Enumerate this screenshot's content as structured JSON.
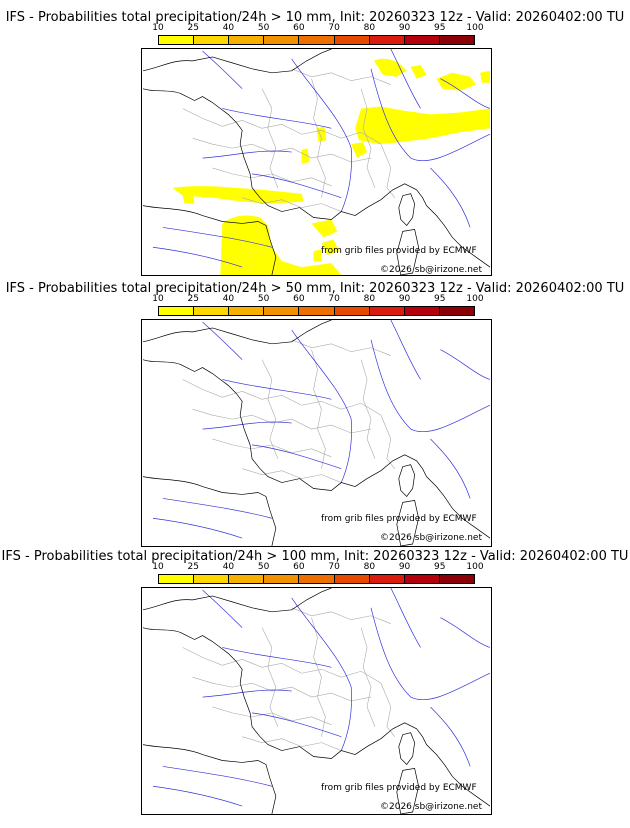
{
  "panels": [
    {
      "title": "IFS - Probabilities total precipitation/24h > 10 mm, Init: 20260323 12z - Valid: 20260402:00 TU",
      "has_precip": true
    },
    {
      "title": "IFS - Probabilities total precipitation/24h > 50 mm, Init: 20260323 12z - Valid: 20260402:00 TU",
      "has_precip": false
    },
    {
      "title": "IFS - Probabilities total precipitation/24h > 100 mm, Init: 20260323 12z - Valid: 20260402:00 TU",
      "has_precip": false
    }
  ],
  "colorbar": {
    "ticks": [
      "10",
      "25",
      "40",
      "50",
      "60",
      "70",
      "80",
      "90",
      "95",
      "100"
    ],
    "colors": [
      "#ffff00",
      "#fcd800",
      "#f7b000",
      "#f29200",
      "#ec6f00",
      "#e64a00",
      "#d91c0e",
      "#b3000c",
      "#8b0006",
      "#5a0000"
    ]
  },
  "credit_source": "from grib files provided by ECMWF",
  "credit_copyright": "©2026 sb@irizone.net",
  "colors": {
    "coast": "#000000",
    "rivers": "#3333dd",
    "borders": "#aaaaaa",
    "precip": "#ffff00"
  }
}
